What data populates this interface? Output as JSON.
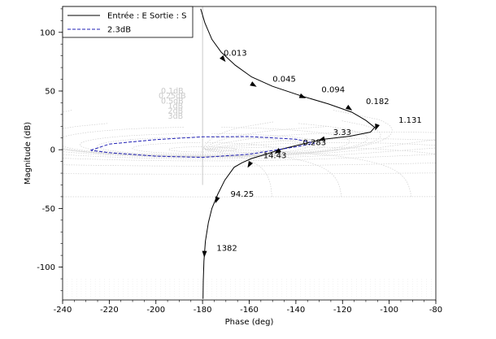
{
  "chart_data": {
    "type": "line",
    "title": "",
    "xlabel": "Phase (deg)",
    "ylabel": "Magnitude (dB)",
    "xlim": [
      -240,
      -80
    ],
    "ylim": [
      -128,
      122
    ],
    "x_ticks": [
      -240,
      -220,
      -200,
      -180,
      -160,
      -140,
      -120,
      -100,
      -80
    ],
    "y_ticks": [
      -100,
      -50,
      0,
      50,
      100
    ],
    "legend": {
      "placement": "top-left",
      "entries": [
        "Entrée : E Sortie : S",
        "2.3dB"
      ]
    },
    "grid": "nichols-chart (light grey)",
    "nichols_grid_labels": [
      "0.1dB",
      "0.25dB",
      "0.5dB",
      "1dB",
      "2dB",
      "3dB"
    ],
    "series": [
      {
        "name": "Entrée : E Sortie : S",
        "color": "#000000",
        "style": "solid",
        "x": [
          -180.8,
          -179,
          -176,
          -172,
          -166,
          -159,
          -150,
          -138,
          -126,
          -116,
          -110,
          -106.2,
          -108,
          -117,
          -128,
          -138,
          -146,
          -153,
          -159,
          -163,
          -166.5,
          -170.5,
          -173.5,
          -176,
          -177.5,
          -178.8,
          -179.4,
          -179.7,
          -179.8
        ],
        "y": [
          120,
          108,
          94,
          83,
          72,
          62,
          54,
          46,
          39,
          32,
          25,
          19,
          15,
          11.5,
          9,
          4.5,
          0.5,
          -4,
          -7.5,
          -11,
          -15,
          -26,
          -38,
          -50,
          -62,
          -78,
          -95,
          -112,
          -127
        ]
      },
      {
        "name": "2.3dB",
        "color": "#1f1fb4",
        "style": "dashed",
        "x": [
          -228,
          -220,
          -200,
          -180,
          -160,
          -140,
          -132,
          -140,
          -160,
          -180,
          -200,
          -220,
          -228
        ],
        "y": [
          -0.5,
          4.8,
          8.6,
          11,
          11.2,
          9,
          5.5,
          2.5,
          -3.8,
          -6.5,
          -5.5,
          -2.5,
          -0.5
        ]
      }
    ],
    "frequency_annotations": [
      {
        "label": "0.013",
        "x": -171,
        "y": 80
      },
      {
        "label": "0.045",
        "x": -150,
        "y": 58
      },
      {
        "label": "0.094",
        "x": -129,
        "y": 49
      },
      {
        "label": "0.182",
        "x": -110,
        "y": 39
      },
      {
        "label": "1.131",
        "x": -96,
        "y": 23
      },
      {
        "label": "3.33",
        "x": -124,
        "y": 12.5
      },
      {
        "label": "0.283",
        "x": -137,
        "y": 4
      },
      {
        "label": "14.43",
        "x": -154,
        "y": -7
      },
      {
        "label": "94.25",
        "x": -168,
        "y": -40
      },
      {
        "label": "1382",
        "x": -174,
        "y": -86
      }
    ],
    "arrows": [
      {
        "x": -171,
        "y": 77,
        "angle": 50
      },
      {
        "x": -158,
        "y": 55,
        "angle": 30
      },
      {
        "x": -137,
        "y": 45,
        "angle": 22
      },
      {
        "x": -117,
        "y": 35,
        "angle": 35
      },
      {
        "x": -105.5,
        "y": 19,
        "angle": 110
      },
      {
        "x": -129,
        "y": 8.7,
        "angle": 165
      },
      {
        "x": -148,
        "y": -1.8,
        "angle": 145
      },
      {
        "x": -160,
        "y": -13,
        "angle": 120
      },
      {
        "x": -174,
        "y": -43,
        "angle": 110
      },
      {
        "x": -179.2,
        "y": -89,
        "angle": 92
      }
    ]
  }
}
